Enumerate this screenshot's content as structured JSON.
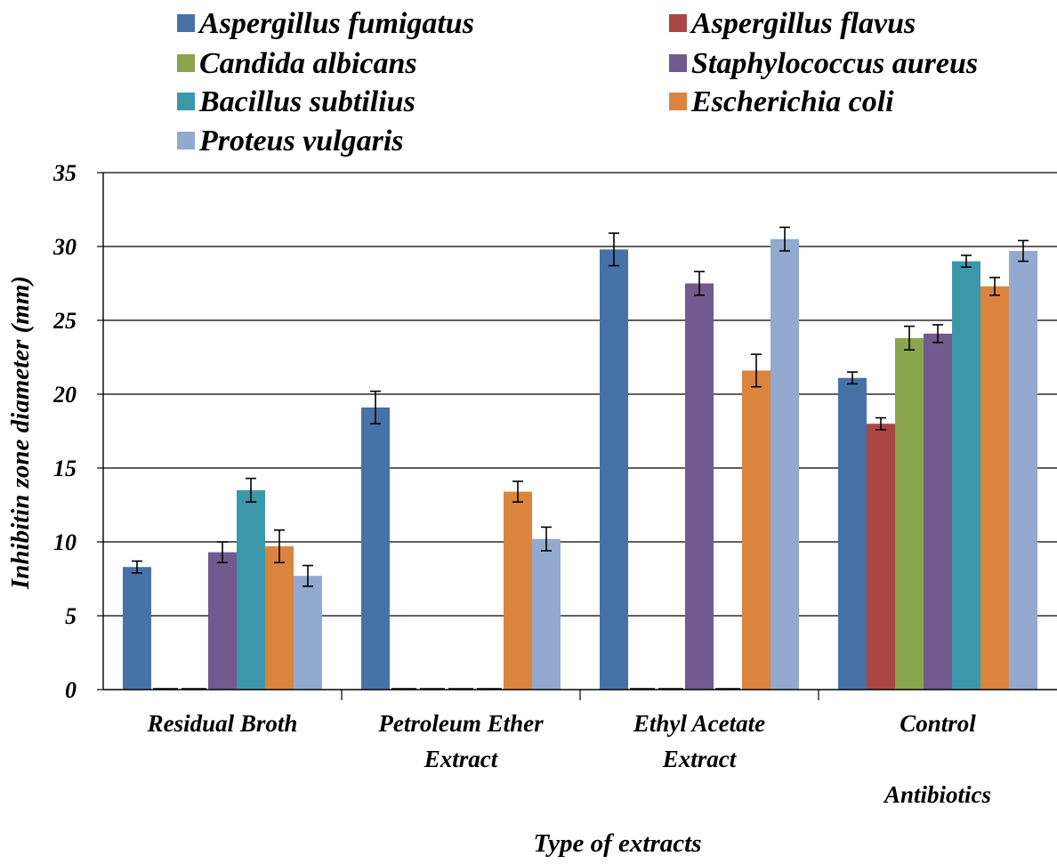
{
  "chart_data": {
    "type": "bar",
    "title": "",
    "xlabel": "Type of extracts",
    "ylabel": "Inhibitin zone diameter (mm)",
    "ylim": [
      0,
      35
    ],
    "yticks": [
      "0",
      "5",
      "10",
      "15",
      "20",
      "25",
      "30",
      "35"
    ],
    "grid": true,
    "legend_position": "top",
    "categories": [
      [
        "Residual Broth"
      ],
      [
        "Petroleum Ether",
        "Extract"
      ],
      [
        "Ethyl Acetate",
        "Extract"
      ],
      [
        "Control",
        "",
        "Antibiotics"
      ]
    ],
    "series": [
      {
        "name": "Aspergillus fumigatus",
        "color": "#4672A8",
        "values": [
          8.3,
          19.1,
          29.8,
          21.1
        ],
        "errors": [
          0.4,
          1.1,
          1.1,
          0.4
        ]
      },
      {
        "name": "Aspergillus flavus",
        "color": "#AB4644",
        "values": [
          0,
          0,
          0,
          18.0
        ],
        "errors": [
          0,
          0,
          0,
          0.4
        ]
      },
      {
        "name": "Candida albicans",
        "color": "#89A54E",
        "values": [
          0,
          0,
          0,
          23.8
        ],
        "errors": [
          0,
          0,
          0,
          0.8
        ]
      },
      {
        "name": "Staphylococcus aureus",
        "color": "#725990",
        "values": [
          9.3,
          0,
          27.5,
          24.1
        ],
        "errors": [
          0.7,
          0,
          0.8,
          0.6
        ]
      },
      {
        "name": "Bacillus subtilius",
        "color": "#3D97AB",
        "values": [
          13.5,
          0,
          0,
          29.0
        ],
        "errors": [
          0.8,
          0,
          0,
          0.4
        ]
      },
      {
        "name": "Escherichia coli",
        "color": "#DB843D",
        "values": [
          9.7,
          13.4,
          21.6,
          27.3
        ],
        "errors": [
          1.1,
          0.7,
          1.1,
          0.6
        ]
      },
      {
        "name": "Proteus vulgaris",
        "color": "#93A9D0",
        "values": [
          7.7,
          10.2,
          30.5,
          29.7
        ],
        "errors": [
          0.7,
          0.8,
          0.8,
          0.7
        ]
      }
    ]
  }
}
